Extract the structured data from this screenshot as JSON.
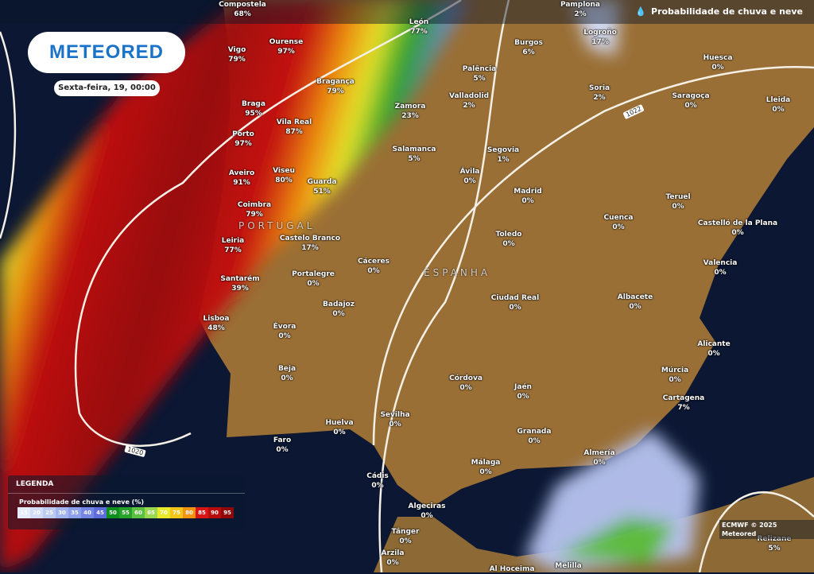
{
  "header": {
    "layer_title": "Probabilidade de chuva e neve",
    "layer_icon": "rain-snow-drop-icon"
  },
  "logo": "METEORED",
  "date": "Sexta-feira, 19, 00:00",
  "countries": [
    "PORTUGAL",
    "ESPANHA"
  ],
  "isobars": [
    "1022",
    "1020"
  ],
  "cities": [
    {
      "name": "Compostela",
      "value": "68%"
    },
    {
      "name": "Ourense",
      "value": "97%"
    },
    {
      "name": "Vigo",
      "value": "79%"
    },
    {
      "name": "Bragança",
      "value": "79%"
    },
    {
      "name": "Braga",
      "value": "95%"
    },
    {
      "name": "Vila Real",
      "value": "87%"
    },
    {
      "name": "Porto",
      "value": "97%"
    },
    {
      "name": "Aveiro",
      "value": "91%"
    },
    {
      "name": "Viseu",
      "value": "80%"
    },
    {
      "name": "Guarda",
      "value": "51%"
    },
    {
      "name": "Coimbra",
      "value": "79%"
    },
    {
      "name": "Leiria",
      "value": "77%"
    },
    {
      "name": "Castelo Branco",
      "value": "17%"
    },
    {
      "name": "Santarém",
      "value": "39%"
    },
    {
      "name": "Portalegre",
      "value": "0%"
    },
    {
      "name": "Cáceres",
      "value": "0%"
    },
    {
      "name": "Lisboa",
      "value": "48%"
    },
    {
      "name": "Badajoz",
      "value": "0%"
    },
    {
      "name": "Évora",
      "value": "0%"
    },
    {
      "name": "Beja",
      "value": "0%"
    },
    {
      "name": "Huelva",
      "value": "0%"
    },
    {
      "name": "Faro",
      "value": "0%"
    },
    {
      "name": "Sevilha",
      "value": "0%"
    },
    {
      "name": "Cádis",
      "value": "0%"
    },
    {
      "name": "Algeciras",
      "value": "0%"
    },
    {
      "name": "Tânger",
      "value": "0%"
    },
    {
      "name": "Arzila",
      "value": "0%"
    },
    {
      "name": "Córdova",
      "value": "0%"
    },
    {
      "name": "Jaén",
      "value": "0%"
    },
    {
      "name": "Granada",
      "value": "0%"
    },
    {
      "name": "Málaga",
      "value": "0%"
    },
    {
      "name": "Almería",
      "value": "0%"
    },
    {
      "name": "Cartagena",
      "value": "7%"
    },
    {
      "name": "Múrcia",
      "value": "0%"
    },
    {
      "name": "Alicante",
      "value": "0%"
    },
    {
      "name": "Albacete",
      "value": "0%"
    },
    {
      "name": "Valencia",
      "value": "0%"
    },
    {
      "name": "Castelló de la Plana",
      "value": "0%"
    },
    {
      "name": "Teruel",
      "value": "0%"
    },
    {
      "name": "Cuenca",
      "value": "0%"
    },
    {
      "name": "Ciudad Real",
      "value": "0%"
    },
    {
      "name": "Toledo",
      "value": "0%"
    },
    {
      "name": "Madrid",
      "value": "0%"
    },
    {
      "name": "Ávila",
      "value": "0%"
    },
    {
      "name": "Segovia",
      "value": "1%"
    },
    {
      "name": "Salamanca",
      "value": "5%"
    },
    {
      "name": "Zamora",
      "value": "23%"
    },
    {
      "name": "Valladolid",
      "value": "2%"
    },
    {
      "name": "Palência",
      "value": "5%"
    },
    {
      "name": "Burgos",
      "value": "6%"
    },
    {
      "name": "León",
      "value": "77%"
    },
    {
      "name": "Logroño",
      "value": "17%"
    },
    {
      "name": "Soria",
      "value": "2%"
    },
    {
      "name": "Saragoça",
      "value": "0%"
    },
    {
      "name": "Huesca",
      "value": "0%"
    },
    {
      "name": "Lleida",
      "value": "0%"
    },
    {
      "name": "Relizane",
      "value": "5%"
    },
    {
      "name": "Pamplona",
      "value": "2%"
    },
    {
      "name": "Melilla",
      "value": ""
    },
    {
      "name": "Al Hoceima",
      "value": ""
    }
  ],
  "legend": {
    "title": "LEGENDA",
    "subtitle": "Probabilidade de chuva e neve (%)",
    "steps": [
      {
        "v": "15",
        "c": "#e6ecfa"
      },
      {
        "v": "20",
        "c": "#d2dcf6"
      },
      {
        "v": "25",
        "c": "#bccbf2"
      },
      {
        "v": "30",
        "c": "#a3b5ee"
      },
      {
        "v": "35",
        "c": "#8c9fea"
      },
      {
        "v": "40",
        "c": "#7585e4"
      },
      {
        "v": "45",
        "c": "#5e6cdc"
      },
      {
        "v": "50",
        "c": "#0f8f1e"
      },
      {
        "v": "55",
        "c": "#27a32a"
      },
      {
        "v": "60",
        "c": "#5cc040"
      },
      {
        "v": "65",
        "c": "#9ad850"
      },
      {
        "v": "70",
        "c": "#e8ea2a"
      },
      {
        "v": "75",
        "c": "#f5c419"
      },
      {
        "v": "80",
        "c": "#f29410"
      },
      {
        "v": "85",
        "c": "#d81414"
      },
      {
        "v": "90",
        "c": "#b80c0c"
      },
      {
        "v": "95",
        "c": "#8e0808"
      }
    ]
  },
  "credit": "ECMWF © 2025 Meteored"
}
